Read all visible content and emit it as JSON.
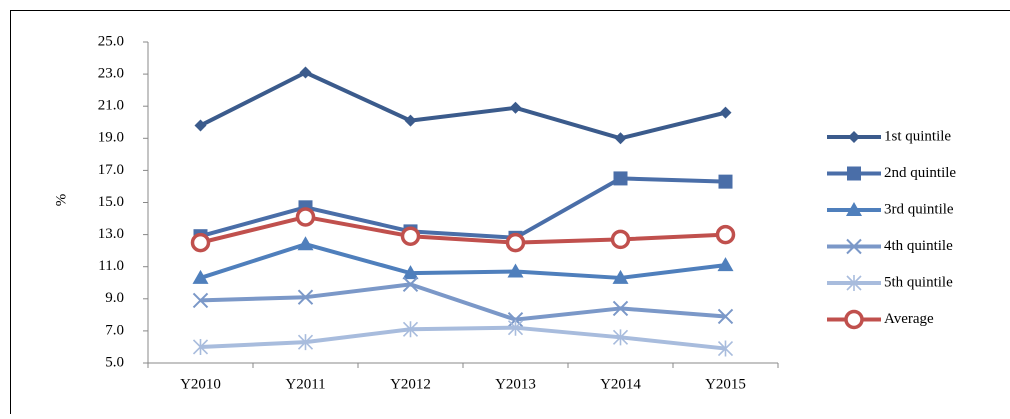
{
  "chart_data": {
    "type": "line",
    "y_label": "%",
    "categories": [
      "Y2010",
      "Y2011",
      "Y2012",
      "Y2013",
      "Y2014",
      "Y2015"
    ],
    "series": [
      {
        "name": "1st quintile",
        "color": "#3b5b8c",
        "marker": "diamond",
        "values": [
          19.8,
          23.1,
          20.1,
          20.9,
          19.0,
          20.6
        ]
      },
      {
        "name": "2nd quintile",
        "color": "#4a6ea8",
        "marker": "square",
        "values": [
          12.9,
          14.7,
          13.2,
          12.8,
          16.5,
          16.3
        ]
      },
      {
        "name": "3rd quintile",
        "color": "#4f7fbc",
        "marker": "triangle",
        "values": [
          10.3,
          12.4,
          10.6,
          10.7,
          10.3,
          11.1
        ]
      },
      {
        "name": "4th quintile",
        "color": "#7b98c8",
        "marker": "x",
        "values": [
          8.9,
          9.1,
          9.9,
          7.7,
          8.4,
          7.9
        ]
      },
      {
        "name": "5th quintile",
        "color": "#a8bcdd",
        "marker": "star",
        "values": [
          6.0,
          6.3,
          7.1,
          7.2,
          6.6,
          5.9
        ]
      },
      {
        "name": "Average",
        "color": "#c0504d",
        "marker": "circle",
        "values": [
          12.5,
          14.1,
          12.9,
          12.5,
          12.7,
          13.0
        ]
      }
    ],
    "ylim": [
      5,
      25
    ],
    "yticks": [
      {
        "value": 5,
        "label": "5.0"
      },
      {
        "value": 7,
        "label": "7.0"
      },
      {
        "value": 9,
        "label": "9.0"
      },
      {
        "value": 11,
        "label": "11.0"
      },
      {
        "value": 13,
        "label": "13.0"
      },
      {
        "value": 15,
        "label": "15.0"
      },
      {
        "value": 17,
        "label": "17.0"
      },
      {
        "value": 19,
        "label": "19.0"
      },
      {
        "value": 21,
        "label": "21.0"
      },
      {
        "value": 23,
        "label": "23.0"
      },
      {
        "value": 25,
        "label": "25.0"
      }
    ],
    "grid": false,
    "legend": "right"
  }
}
